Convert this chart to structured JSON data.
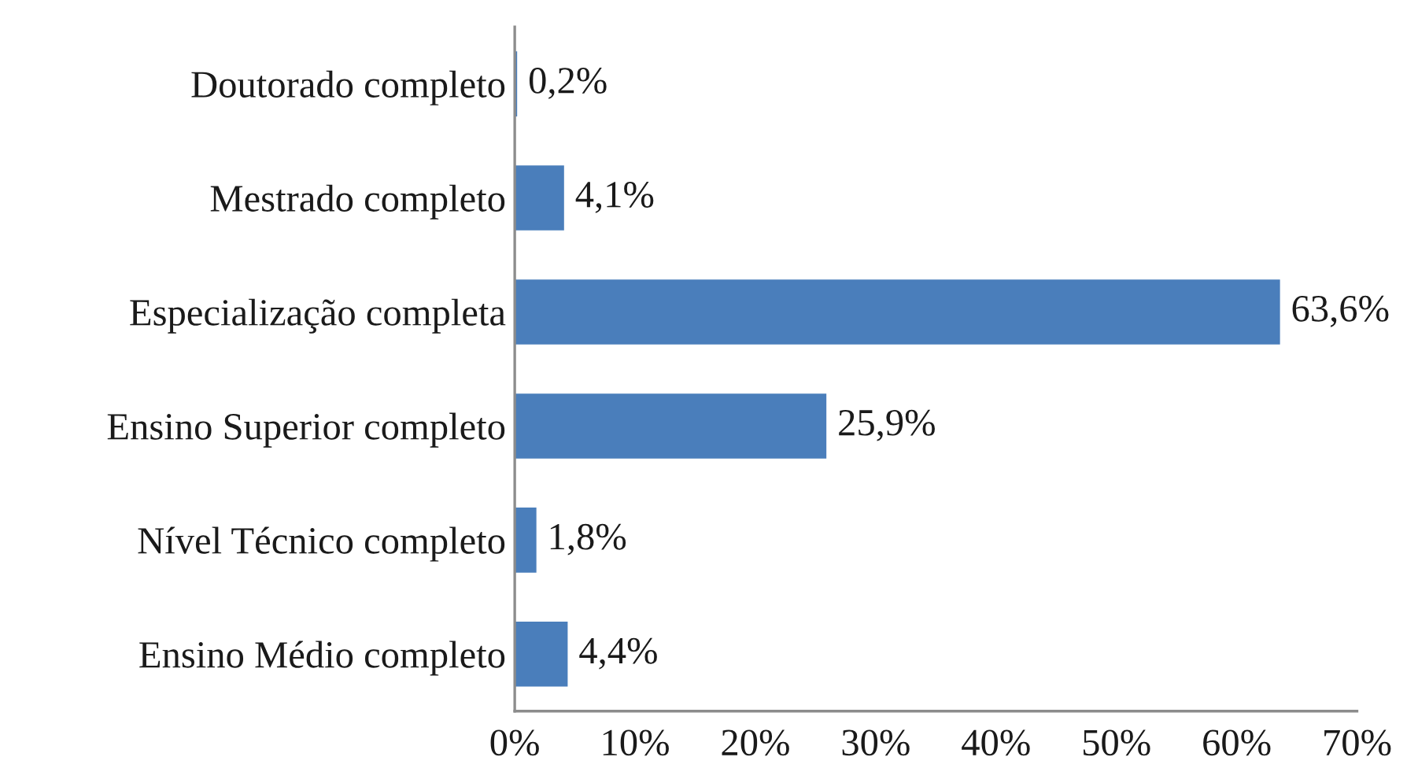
{
  "chart_data": {
    "type": "bar",
    "orientation": "horizontal",
    "categories": [
      "Doutorado completo",
      "Mestrado completo",
      "Especialização completa",
      "Ensino Superior completo",
      "Nível Técnico completo",
      "Ensino Médio completo"
    ],
    "values": [
      0.2,
      4.1,
      63.6,
      25.9,
      1.8,
      4.4
    ],
    "color": "#4a7ebb",
    "value_labels": [
      "0,2%",
      "4,1%",
      "63,6%",
      "25,9%",
      "1,8%",
      "4,4%"
    ],
    "xlim": [
      0,
      70
    ],
    "xticks": [
      {
        "value": 0,
        "label": "0%"
      },
      {
        "value": 10,
        "label": "10%"
      },
      {
        "value": 20,
        "label": "20%"
      },
      {
        "value": 30,
        "label": "30%"
      },
      {
        "value": 40,
        "label": "40%"
      },
      {
        "value": 50,
        "label": "50%"
      },
      {
        "value": 60,
        "label": "60%"
      },
      {
        "value": 70,
        "label": "70%"
      }
    ]
  }
}
